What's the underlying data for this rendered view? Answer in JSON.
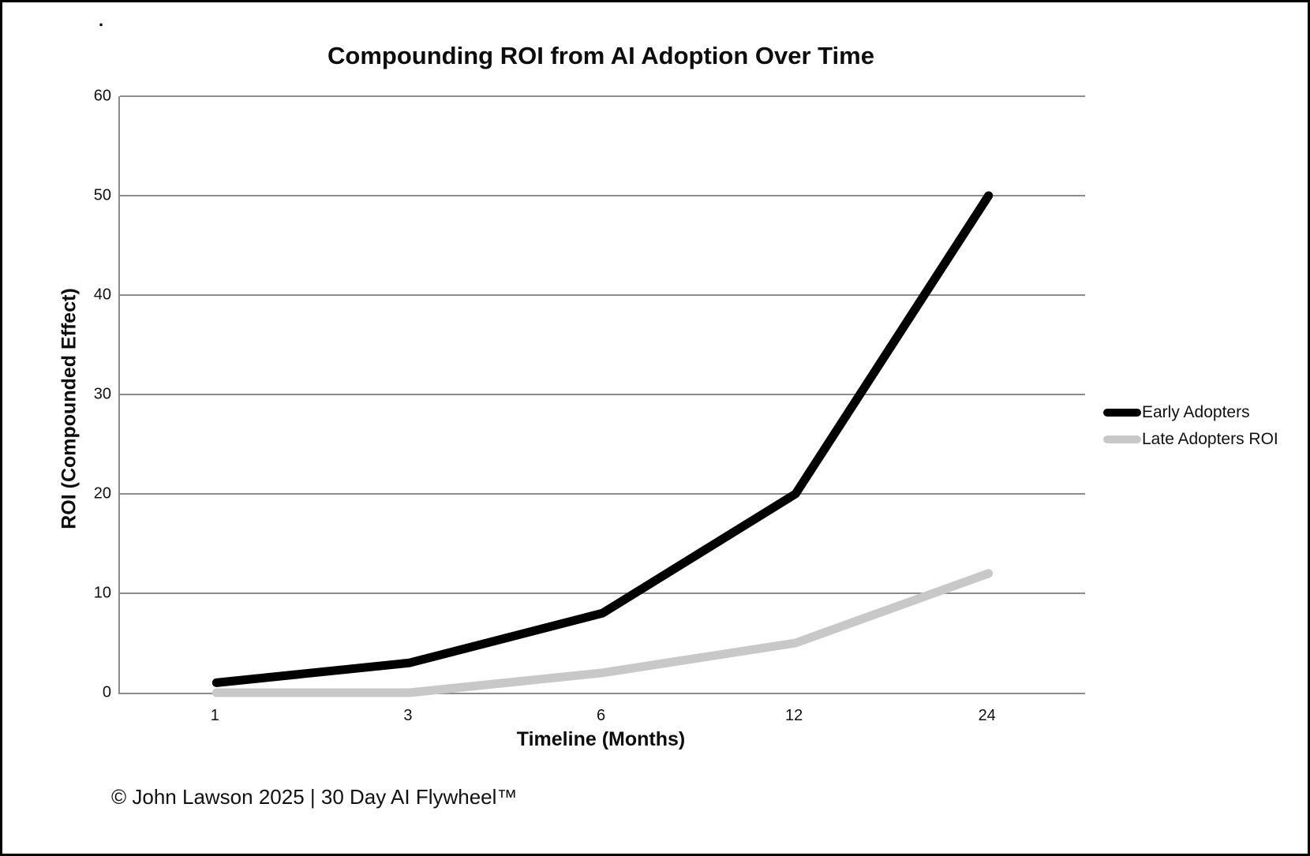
{
  "chart_data": {
    "type": "line",
    "title": "Compounding ROI from AI Adoption Over Time",
    "xlabel": "Timeline (Months)",
    "ylabel": "ROI (Compounded Effect)",
    "categories": [
      "1",
      "3",
      "6",
      "12",
      "24"
    ],
    "series": [
      {
        "name": "Early Adopters",
        "values": [
          1,
          3,
          8,
          20,
          50
        ],
        "color": "#000000"
      },
      {
        "name": "Late Adopters ROI",
        "values": [
          0,
          0,
          2,
          5,
          12
        ],
        "color": "#c8c8c8"
      }
    ],
    "ylim": [
      0,
      60
    ],
    "yticks": [
      0,
      10,
      20,
      30,
      40,
      50,
      60
    ],
    "grid": true,
    "legend_position": "right",
    "line_width": 11
  },
  "decorations": {
    "stray_dot": "."
  },
  "footer": {
    "text": "© John Lawson 2025 | 30 Day AI Flywheel™"
  },
  "colors": {
    "axis": "#8c8c8c",
    "gridline": "#8c8c8c",
    "background": "#ffffff",
    "border": "#000000"
  }
}
